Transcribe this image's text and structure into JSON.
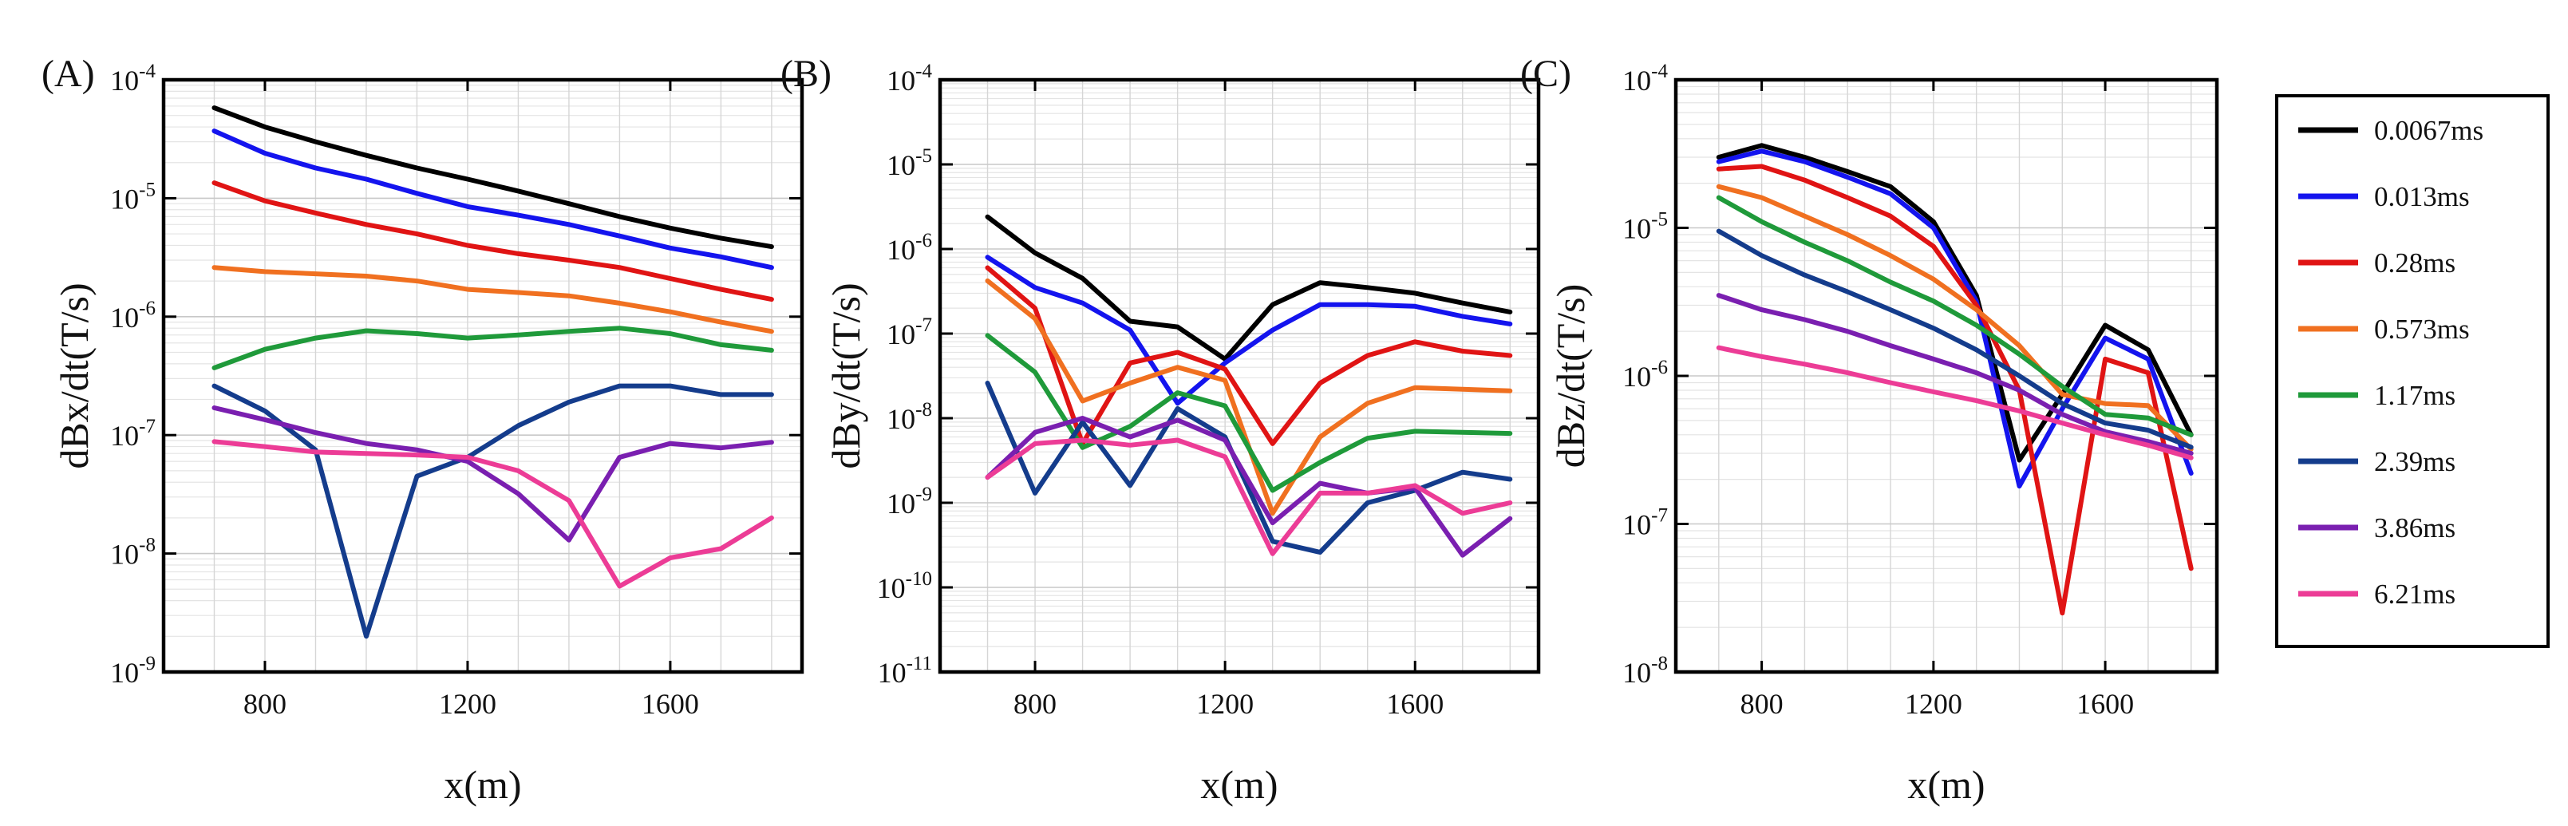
{
  "figure": {
    "title": ""
  },
  "legend": {
    "entries": [
      {
        "label": "0.0067ms",
        "color": "#000000"
      },
      {
        "label": "0.013ms",
        "color": "#1414ee"
      },
      {
        "label": "0.28ms",
        "color": "#e01414"
      },
      {
        "label": "0.573ms",
        "color": "#f07020"
      },
      {
        "label": "1.17ms",
        "color": "#1f9a3a"
      },
      {
        "label": "2.39ms",
        "color": "#143c8c"
      },
      {
        "label": "3.86ms",
        "color": "#7a1fb0"
      },
      {
        "label": "6.21ms",
        "color": "#ec3c96"
      }
    ]
  },
  "chart_data": [
    {
      "type": "line",
      "panel_label": "(A)",
      "xlabel": "x(m)",
      "ylabel": "dBx/dt(T/s)",
      "xlim": [
        600,
        1860
      ],
      "xticks": [
        800,
        1200,
        1600
      ],
      "yscale": "log",
      "ylim_exp": [
        -9,
        -4
      ],
      "ytick_labels": [
        {
          "base": "10",
          "exp": "-4"
        },
        {
          "base": "10",
          "exp": "-5"
        },
        {
          "base": "10",
          "exp": "-6"
        },
        {
          "base": "10",
          "exp": "-7"
        },
        {
          "base": "10",
          "exp": "-8"
        },
        {
          "base": "10",
          "exp": "-9"
        }
      ],
      "grid": true,
      "x": [
        700,
        800,
        900,
        1000,
        1100,
        1200,
        1300,
        1400,
        1500,
        1600,
        1700,
        1800
      ],
      "series": [
        {
          "name": "0.0067ms",
          "values": [
            5.8e-05,
            4e-05,
            3e-05,
            2.3e-05,
            1.8e-05,
            1.45e-05,
            1.15e-05,
            9e-06,
            7e-06,
            5.6e-06,
            4.6e-06,
            3.9e-06
          ]
        },
        {
          "name": "0.013ms",
          "values": [
            3.7e-05,
            2.4e-05,
            1.8e-05,
            1.45e-05,
            1.1e-05,
            8.5e-06,
            7.2e-06,
            6e-06,
            4.8e-06,
            3.8e-06,
            3.2e-06,
            2.6e-06
          ]
        },
        {
          "name": "0.28ms",
          "values": [
            1.35e-05,
            9.5e-06,
            7.5e-06,
            6e-06,
            5e-06,
            4e-06,
            3.4e-06,
            3e-06,
            2.6e-06,
            2.1e-06,
            1.7e-06,
            1.4e-06
          ]
        },
        {
          "name": "0.573ms",
          "values": [
            2.6e-06,
            2.4e-06,
            2.3e-06,
            2.2e-06,
            2e-06,
            1.7e-06,
            1.6e-06,
            1.5e-06,
            1.3e-06,
            1.1e-06,
            9e-07,
            7.5e-07
          ]
        },
        {
          "name": "1.17ms",
          "values": [
            3.7e-07,
            5.3e-07,
            6.6e-07,
            7.6e-07,
            7.2e-07,
            6.6e-07,
            7e-07,
            7.5e-07,
            8e-07,
            7.2e-07,
            5.8e-07,
            5.2e-07
          ]
        },
        {
          "name": "2.39ms",
          "values": [
            2.6e-07,
            1.6e-07,
            7.5e-08,
            2e-09,
            4.5e-08,
            6.5e-08,
            1.2e-07,
            1.9e-07,
            2.6e-07,
            2.6e-07,
            2.2e-07,
            2.2e-07
          ]
        },
        {
          "name": "3.86ms",
          "values": [
            1.7e-07,
            1.35e-07,
            1.05e-07,
            8.5e-08,
            7.5e-08,
            6e-08,
            3.2e-08,
            1.3e-08,
            6.5e-08,
            8.5e-08,
            7.8e-08,
            8.7e-08
          ]
        },
        {
          "name": "6.21ms",
          "values": [
            8.8e-08,
            8e-08,
            7.2e-08,
            7e-08,
            6.8e-08,
            6.5e-08,
            5e-08,
            2.8e-08,
            5.3e-09,
            9.2e-09,
            1.1e-08,
            2e-08
          ]
        }
      ]
    },
    {
      "type": "line",
      "panel_label": "(B)",
      "xlabel": "x(m)",
      "ylabel": "dBy/dt(T/s)",
      "xlim": [
        600,
        1860
      ],
      "xticks": [
        800,
        1200,
        1600
      ],
      "yscale": "log",
      "ylim_exp": [
        -11,
        -4
      ],
      "ytick_labels": [
        {
          "base": "10",
          "exp": "-4"
        },
        {
          "base": "10",
          "exp": "-5"
        },
        {
          "base": "10",
          "exp": "-6"
        },
        {
          "base": "10",
          "exp": "-7"
        },
        {
          "base": "10",
          "exp": "-8"
        },
        {
          "base": "10",
          "exp": "-9"
        },
        {
          "base": "10",
          "exp": "-10"
        },
        {
          "base": "10",
          "exp": "-11"
        }
      ],
      "grid": true,
      "x": [
        700,
        800,
        900,
        1000,
        1100,
        1200,
        1300,
        1400,
        1500,
        1600,
        1700,
        1800
      ],
      "series": [
        {
          "name": "0.0067ms",
          "values": [
            2.4e-06,
            9e-07,
            4.5e-07,
            1.4e-07,
            1.2e-07,
            5e-08,
            2.2e-07,
            4e-07,
            3.5e-07,
            3e-07,
            2.3e-07,
            1.8e-07
          ]
        },
        {
          "name": "0.013ms",
          "values": [
            8e-07,
            3.5e-07,
            2.3e-07,
            1.1e-07,
            1.5e-08,
            4.5e-08,
            1.1e-07,
            2.2e-07,
            2.2e-07,
            2.1e-07,
            1.6e-07,
            1.3e-07
          ]
        },
        {
          "name": "0.28ms",
          "values": [
            6e-07,
            2e-07,
            5e-09,
            4.5e-08,
            6e-08,
            3.8e-08,
            5e-09,
            2.6e-08,
            5.5e-08,
            8e-08,
            6.2e-08,
            5.5e-08
          ]
        },
        {
          "name": "0.573ms",
          "values": [
            4.2e-07,
            1.5e-07,
            1.6e-08,
            2.6e-08,
            4e-08,
            2.8e-08,
            7.5e-10,
            6e-09,
            1.5e-08,
            2.3e-08,
            2.2e-08,
            2.1e-08
          ]
        },
        {
          "name": "1.17ms",
          "values": [
            9.5e-08,
            3.5e-08,
            4.5e-09,
            8e-09,
            2e-08,
            1.4e-08,
            1.4e-09,
            3e-09,
            5.8e-09,
            7e-09,
            6.8e-09,
            6.6e-09
          ]
        },
        {
          "name": "2.39ms",
          "values": [
            2.6e-08,
            1.3e-09,
            9e-09,
            1.6e-09,
            1.3e-08,
            6e-09,
            3.5e-10,
            2.6e-10,
            1e-09,
            1.4e-09,
            2.3e-09,
            1.9e-09
          ]
        },
        {
          "name": "3.86ms",
          "values": [
            2e-09,
            6.8e-09,
            1e-08,
            6e-09,
            9.5e-09,
            5.5e-09,
            5.8e-10,
            1.7e-09,
            1.3e-09,
            1.5e-09,
            2.4e-10,
            6.5e-10
          ]
        },
        {
          "name": "6.21ms",
          "values": [
            2e-09,
            5e-09,
            5.5e-09,
            4.8e-09,
            5.5e-09,
            3.5e-09,
            2.5e-10,
            1.3e-09,
            1.3e-09,
            1.6e-09,
            7.5e-10,
            1e-09
          ]
        }
      ]
    },
    {
      "type": "line",
      "panel_label": "(C)",
      "xlabel": "x(m)",
      "ylabel": "dBz/dt(T/s)",
      "xlim": [
        600,
        1860
      ],
      "xticks": [
        800,
        1200,
        1600
      ],
      "yscale": "log",
      "ylim_exp": [
        -8,
        -4
      ],
      "ytick_labels": [
        {
          "base": "10",
          "exp": "-4"
        },
        {
          "base": "10",
          "exp": "-5"
        },
        {
          "base": "10",
          "exp": "-6"
        },
        {
          "base": "10",
          "exp": "-7"
        },
        {
          "base": "10",
          "exp": "-8"
        }
      ],
      "grid": true,
      "x": [
        700,
        800,
        900,
        1000,
        1100,
        1200,
        1300,
        1400,
        1500,
        1600,
        1700,
        1800
      ],
      "series": [
        {
          "name": "0.0067ms",
          "values": [
            3e-05,
            3.6e-05,
            3e-05,
            2.4e-05,
            1.9e-05,
            1.1e-05,
            3.5e-06,
            2.7e-07,
            7.5e-07,
            2.2e-06,
            1.5e-06,
            4e-07
          ]
        },
        {
          "name": "0.013ms",
          "values": [
            2.8e-05,
            3.3e-05,
            2.8e-05,
            2.2e-05,
            1.7e-05,
            1e-05,
            3.2e-06,
            1.8e-07,
            6e-07,
            1.8e-06,
            1.3e-06,
            2.2e-07
          ]
        },
        {
          "name": "0.28ms",
          "values": [
            2.5e-05,
            2.6e-05,
            2.1e-05,
            1.6e-05,
            1.2e-05,
            7.5e-06,
            3e-06,
            8e-07,
            2.5e-08,
            1.3e-06,
            1.05e-06,
            5e-08
          ]
        },
        {
          "name": "0.573ms",
          "values": [
            1.9e-05,
            1.6e-05,
            1.2e-05,
            9e-06,
            6.5e-06,
            4.5e-06,
            2.8e-06,
            1.6e-06,
            7.5e-07,
            6.5e-07,
            6.3e-07,
            3.2e-07
          ]
        },
        {
          "name": "1.17ms",
          "values": [
            1.6e-05,
            1.1e-05,
            8e-06,
            6e-06,
            4.3e-06,
            3.2e-06,
            2.2e-06,
            1.4e-06,
            8.5e-07,
            5.5e-07,
            5.2e-07,
            4e-07
          ]
        },
        {
          "name": "2.39ms",
          "values": [
            9.5e-06,
            6.5e-06,
            4.8e-06,
            3.7e-06,
            2.8e-06,
            2.1e-06,
            1.5e-06,
            1e-06,
            6.5e-07,
            4.8e-07,
            4.3e-07,
            3.3e-07
          ]
        },
        {
          "name": "3.86ms",
          "values": [
            3.5e-06,
            2.8e-06,
            2.4e-06,
            2e-06,
            1.6e-06,
            1.3e-06,
            1.05e-06,
            8e-07,
            5.5e-07,
            4.2e-07,
            3.6e-07,
            3e-07
          ]
        },
        {
          "name": "6.21ms",
          "values": [
            1.55e-06,
            1.35e-06,
            1.2e-06,
            1.05e-06,
            9e-07,
            7.8e-07,
            6.8e-07,
            5.8e-07,
            4.8e-07,
            4e-07,
            3.4e-07,
            2.8e-07
          ]
        }
      ]
    }
  ]
}
